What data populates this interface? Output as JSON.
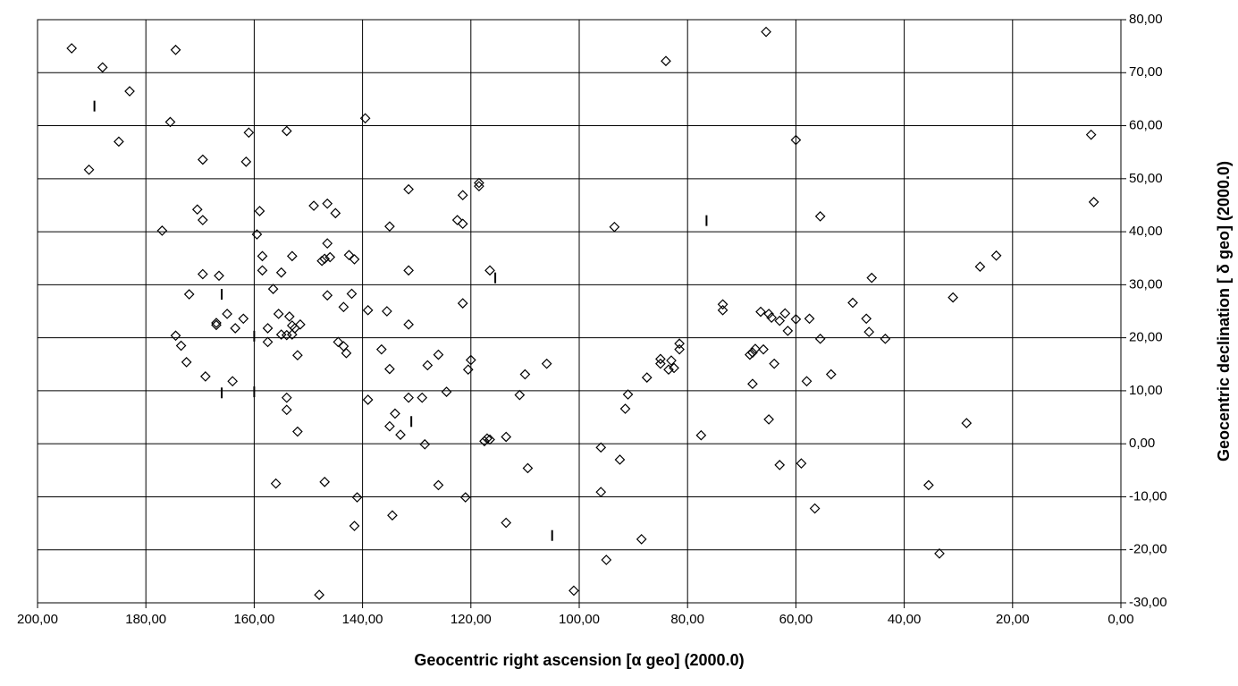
{
  "chart_data": {
    "type": "scatter",
    "x_label": "Geocentric right ascension [α geo] (2000.0)",
    "y_label": "Geocentric declination [ δ geo] (2000.0)",
    "x_reversed": true,
    "grid": true,
    "xlim": [
      200,
      0
    ],
    "ylim": [
      -30,
      80
    ],
    "xticks": [
      {
        "value": 200,
        "label": "200,00"
      },
      {
        "value": 180,
        "label": "180,00"
      },
      {
        "value": 160,
        "label": "160,00"
      },
      {
        "value": 140,
        "label": "140,00"
      },
      {
        "value": 120,
        "label": "120,00"
      },
      {
        "value": 100,
        "label": "100,00"
      },
      {
        "value": 80,
        "label": "80,00"
      },
      {
        "value": 60,
        "label": "60,00"
      },
      {
        "value": 40,
        "label": "40,00"
      },
      {
        "value": 20,
        "label": "20,00"
      },
      {
        "value": 0,
        "label": "0,00"
      }
    ],
    "yticks": [
      {
        "value": 80,
        "label": "80,00"
      },
      {
        "value": 70,
        "label": "70,00"
      },
      {
        "value": 60,
        "label": "60,00"
      },
      {
        "value": 50,
        "label": "50,00"
      },
      {
        "value": 40,
        "label": "40,00"
      },
      {
        "value": 30,
        "label": "30,00"
      },
      {
        "value": 20,
        "label": "20,00"
      },
      {
        "value": 10,
        "label": "10,00"
      },
      {
        "value": 0,
        "label": "0,00"
      },
      {
        "value": -10,
        "label": "-10,00"
      },
      {
        "value": -20,
        "label": "-20,00"
      },
      {
        "value": -30,
        "label": "-30,00"
      }
    ],
    "series": [
      {
        "color": "#000000",
        "marker": "diamond",
        "x": [
          193.7,
          188,
          183,
          174.5,
          185,
          190.5,
          175.5,
          169.5,
          161,
          161.5,
          154,
          139.5,
          177,
          170.5,
          169.5,
          159,
          159.5,
          158.5,
          158.5,
          169.5,
          166.5,
          172,
          165,
          167,
          167,
          162,
          163.5,
          174.5,
          173.5,
          172.5,
          169,
          164,
          156.5,
          155,
          153,
          149,
          146.5,
          145,
          147.5,
          147,
          146.5,
          146,
          142.5,
          141.5,
          146.5,
          142,
          143.5,
          157.5,
          157.5,
          155.5,
          155,
          154,
          153.5,
          153,
          152.5,
          153,
          151.5,
          152,
          144.5,
          143.5,
          143,
          154,
          154,
          152,
          156,
          147,
          141,
          141.5,
          148,
          135,
          139,
          135.5,
          136.5,
          135,
          139,
          131.5,
          131.5,
          131.5,
          131.5,
          129,
          134,
          135,
          133,
          128.5,
          134.5,
          128,
          126,
          124.5,
          126,
          122.5,
          121.5,
          121.5,
          118.5,
          118.5,
          121.5,
          116.5,
          120,
          120.5,
          117.5,
          117,
          116.5,
          113.5,
          121,
          113.5,
          111,
          110,
          109.5,
          106,
          101,
          96,
          96,
          95,
          93.5,
          92.5,
          91,
          91.5,
          88.5,
          84,
          87.5,
          85,
          85,
          83.5,
          83,
          82.5,
          81.5,
          81.5,
          77.5,
          73.5,
          73.5,
          65.5,
          60,
          66.5,
          65,
          64.5,
          63,
          62,
          61.5,
          60,
          57.5,
          66,
          67.5,
          68,
          68.5,
          68,
          64,
          65,
          63,
          59,
          58,
          55.5,
          55.5,
          56.5,
          53.5,
          49.5,
          47,
          46.5,
          46,
          43.5,
          35.5,
          33.5,
          31,
          28.5,
          26,
          23,
          5.5,
          5
        ],
        "y": [
          74.6,
          71,
          66.5,
          74.3,
          57,
          51.7,
          60.7,
          53.6,
          58.7,
          53.2,
          59,
          61.4,
          40.2,
          44.2,
          42.2,
          43.9,
          39.5,
          35.4,
          32.7,
          32,
          31.7,
          28.2,
          24.5,
          22.8,
          22.4,
          23.6,
          21.8,
          20.4,
          18.5,
          15.4,
          12.7,
          11.8,
          29.2,
          32.3,
          35.4,
          44.9,
          45.3,
          43.5,
          34.5,
          34.9,
          37.8,
          35.2,
          35.6,
          34.8,
          28,
          28.3,
          25.8,
          21.8,
          19.2,
          24.5,
          20.6,
          20.5,
          24,
          22.3,
          21.8,
          20.6,
          22.5,
          16.7,
          19.2,
          18.4,
          17.1,
          8.7,
          6.4,
          2.3,
          -7.5,
          -7.2,
          -10.1,
          -15.5,
          -28.5,
          41,
          25.2,
          25,
          17.8,
          14.1,
          8.3,
          48,
          32.7,
          22.5,
          8.7,
          8.7,
          5.7,
          3.3,
          1.7,
          -0.1,
          -13.5,
          14.8,
          16.8,
          9.8,
          -7.8,
          42.2,
          41.5,
          46.9,
          49.2,
          48.6,
          26.5,
          32.7,
          15.8,
          14,
          0.5,
          1,
          0.8,
          1.3,
          -10.1,
          -14.9,
          9.2,
          13.1,
          -4.6,
          15.1,
          -27.7,
          -0.7,
          -9.1,
          -21.9,
          40.9,
          -3,
          9.3,
          6.6,
          -18,
          72.2,
          12.5,
          16,
          15.1,
          14,
          15.7,
          14.3,
          18.9,
          17.8,
          1.6,
          26.3,
          25.2,
          77.7,
          57.3,
          24.9,
          24.5,
          23.8,
          23.2,
          24.6,
          21.3,
          23.5,
          23.6,
          17.8,
          17.9,
          17.2,
          16.8,
          11.3,
          15.1,
          4.6,
          -4,
          -3.7,
          11.8,
          19.8,
          42.9,
          -12.2,
          13.1,
          26.6,
          23.6,
          21.1,
          31.3,
          19.8,
          -7.8,
          -20.7,
          27.6,
          3.9,
          33.4,
          35.5,
          58.3,
          45.6
        ]
      },
      {
        "color": "#000000",
        "marker": "vbar",
        "x": [
          189.5,
          166,
          166,
          160,
          160,
          131,
          115.5,
          105,
          76.5
        ],
        "y": [
          63.7,
          28.2,
          9.6,
          20.3,
          9.8,
          4.2,
          31.3,
          -17.3,
          42.1
        ]
      }
    ]
  }
}
